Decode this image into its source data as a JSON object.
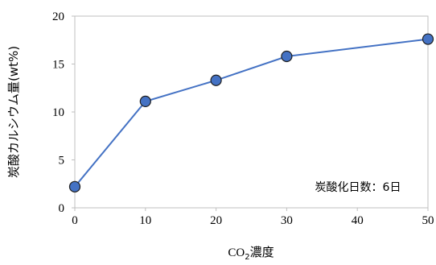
{
  "chart_data": {
    "type": "line",
    "x": [
      0,
      10,
      20,
      30,
      40,
      50
    ],
    "series": [
      {
        "x": [
          0,
          10,
          20,
          30,
          50
        ],
        "values": [
          2.2,
          11.1,
          13.3,
          15.8,
          17.6
        ],
        "color": "#4472C4",
        "marker_color": "#4472C4",
        "marker_edge": "#1F1F1F"
      }
    ],
    "xlabel_main": "CO",
    "xlabel_sub": "2",
    "xlabel_rest": "濃度",
    "ylabel": "炭酸カルシウム量(wt%)",
    "xlim": [
      0,
      50
    ],
    "ylim": [
      0,
      20
    ],
    "xticks": [
      "0",
      "10",
      "20",
      "30",
      "40",
      "50"
    ],
    "yticks": [
      "0",
      "5",
      "10",
      "15",
      "20"
    ],
    "annotation": "炭酸化日数：6日",
    "grid": false,
    "legend": "none"
  }
}
